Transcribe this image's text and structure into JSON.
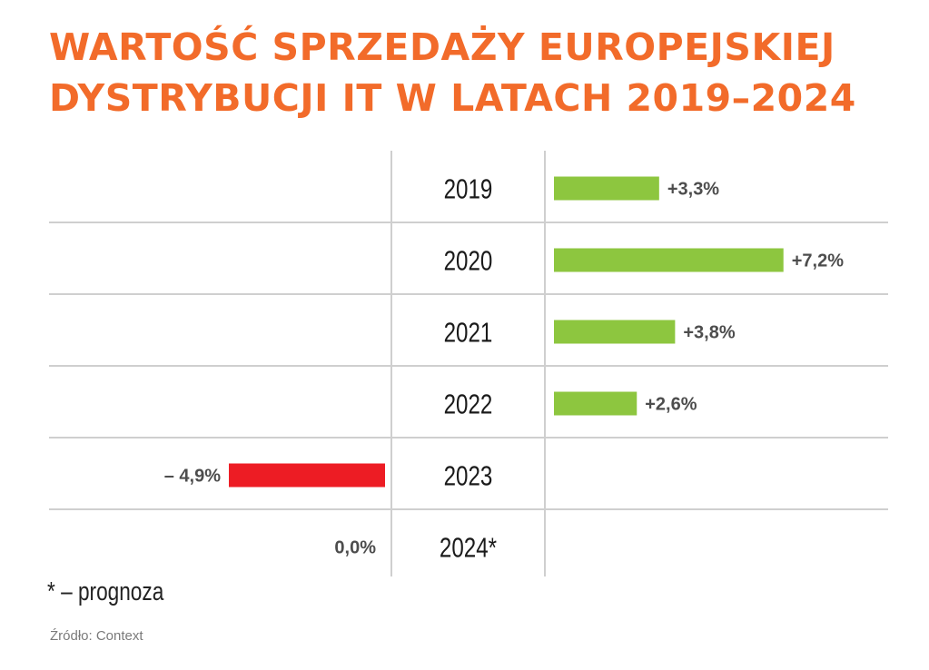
{
  "title_lines": [
    "WARTOŚĆ SPRZEDAŻY EUROPEJSKIEJ",
    "DYSTRYBUCJI IT W LATACH 2019–2024"
  ],
  "colors": {
    "title": "#f26b2a",
    "positive": "#8dc63f",
    "negative": "#ed1c24",
    "grid": "#cfcfcf",
    "label": "#4d4d4d"
  },
  "footnote": "* – prognoza",
  "source": "Źródło: Context",
  "chart_data": {
    "type": "bar",
    "orientation": "horizontal",
    "title": "WARTOŚĆ SPRZEDAŻY EUROPEJSKIEJ DYSTRYBUCJI IT W LATACH 2019–2024",
    "unit": "%",
    "categories": [
      "2019",
      "2020",
      "2021",
      "2022",
      "2023",
      "2024*"
    ],
    "values": [
      3.3,
      7.2,
      3.8,
      2.6,
      -4.9,
      0.0
    ],
    "data_labels": [
      "+3,3%",
      "+7,2%",
      "+3,8%",
      "+2,6%",
      "– 4,9%",
      "0,0%"
    ],
    "grid": true,
    "legend": "none"
  }
}
